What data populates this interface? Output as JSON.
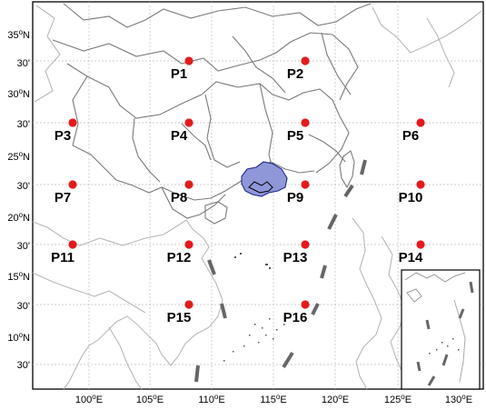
{
  "map": {
    "lat_labels": [
      {
        "text": "35",
        "deg": "o",
        "hem": "N"
      },
      {
        "text": "30'"
      },
      {
        "text": "30",
        "deg": "o",
        "hem": "N"
      },
      {
        "text": "30'"
      },
      {
        "text": "25",
        "deg": "o",
        "hem": "N"
      },
      {
        "text": "30'"
      },
      {
        "text": "20",
        "deg": "o",
        "hem": "N"
      },
      {
        "text": "30'"
      },
      {
        "text": "15",
        "deg": "o",
        "hem": "N"
      },
      {
        "text": "30'"
      },
      {
        "text": "10",
        "deg": "o",
        "hem": "N"
      },
      {
        "text": "30'"
      }
    ],
    "lon_labels": [
      {
        "text": "100",
        "deg": "o",
        "hem": "E"
      },
      {
        "text": "105",
        "deg": "o",
        "hem": "E"
      },
      {
        "text": "110",
        "deg": "o",
        "hem": "E"
      },
      {
        "text": "115",
        "deg": "o",
        "hem": "E"
      },
      {
        "text": "120",
        "deg": "o",
        "hem": "E"
      },
      {
        "text": "125",
        "deg": "o",
        "hem": "E"
      },
      {
        "text": "130",
        "deg": "o",
        "hem": "E"
      }
    ],
    "points": [
      {
        "label": "P1"
      },
      {
        "label": "P2"
      },
      {
        "label": "P3"
      },
      {
        "label": "P4"
      },
      {
        "label": "P5"
      },
      {
        "label": "P6"
      },
      {
        "label": "P7"
      },
      {
        "label": "P8"
      },
      {
        "label": "P9"
      },
      {
        "label": "P10"
      },
      {
        "label": "P11"
      },
      {
        "label": "P12"
      },
      {
        "label": "P13"
      },
      {
        "label": "P14"
      },
      {
        "label": "P15"
      },
      {
        "label": "P16"
      }
    ],
    "colors": {
      "point": "#e41a1c",
      "province_border": "#777777",
      "coast_gray": "#bbbbbb",
      "highlight_fill": "#8f97d9",
      "highlight_stroke": "#1f2a8c",
      "dash_line": "#666666",
      "grid": "#bdbdbd"
    },
    "inset": true
  }
}
